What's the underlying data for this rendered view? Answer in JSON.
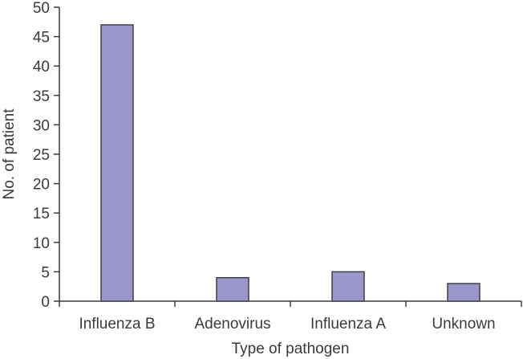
{
  "chart_data": {
    "type": "bar",
    "title": "",
    "xlabel": "Type of pathogen",
    "ylabel": "No. of patient",
    "categories": [
      "Influenza B",
      "Adenovirus",
      "Influenza A",
      "Unknown"
    ],
    "values": [
      47,
      4,
      5,
      3
    ],
    "ylim": [
      0,
      50
    ],
    "yticks": [
      0,
      5,
      10,
      15,
      20,
      25,
      30,
      35,
      40,
      45,
      50
    ],
    "grid": false,
    "legend": null,
    "bar_color": "#9b97cb",
    "bar_edge_color": "#3f3f52"
  }
}
